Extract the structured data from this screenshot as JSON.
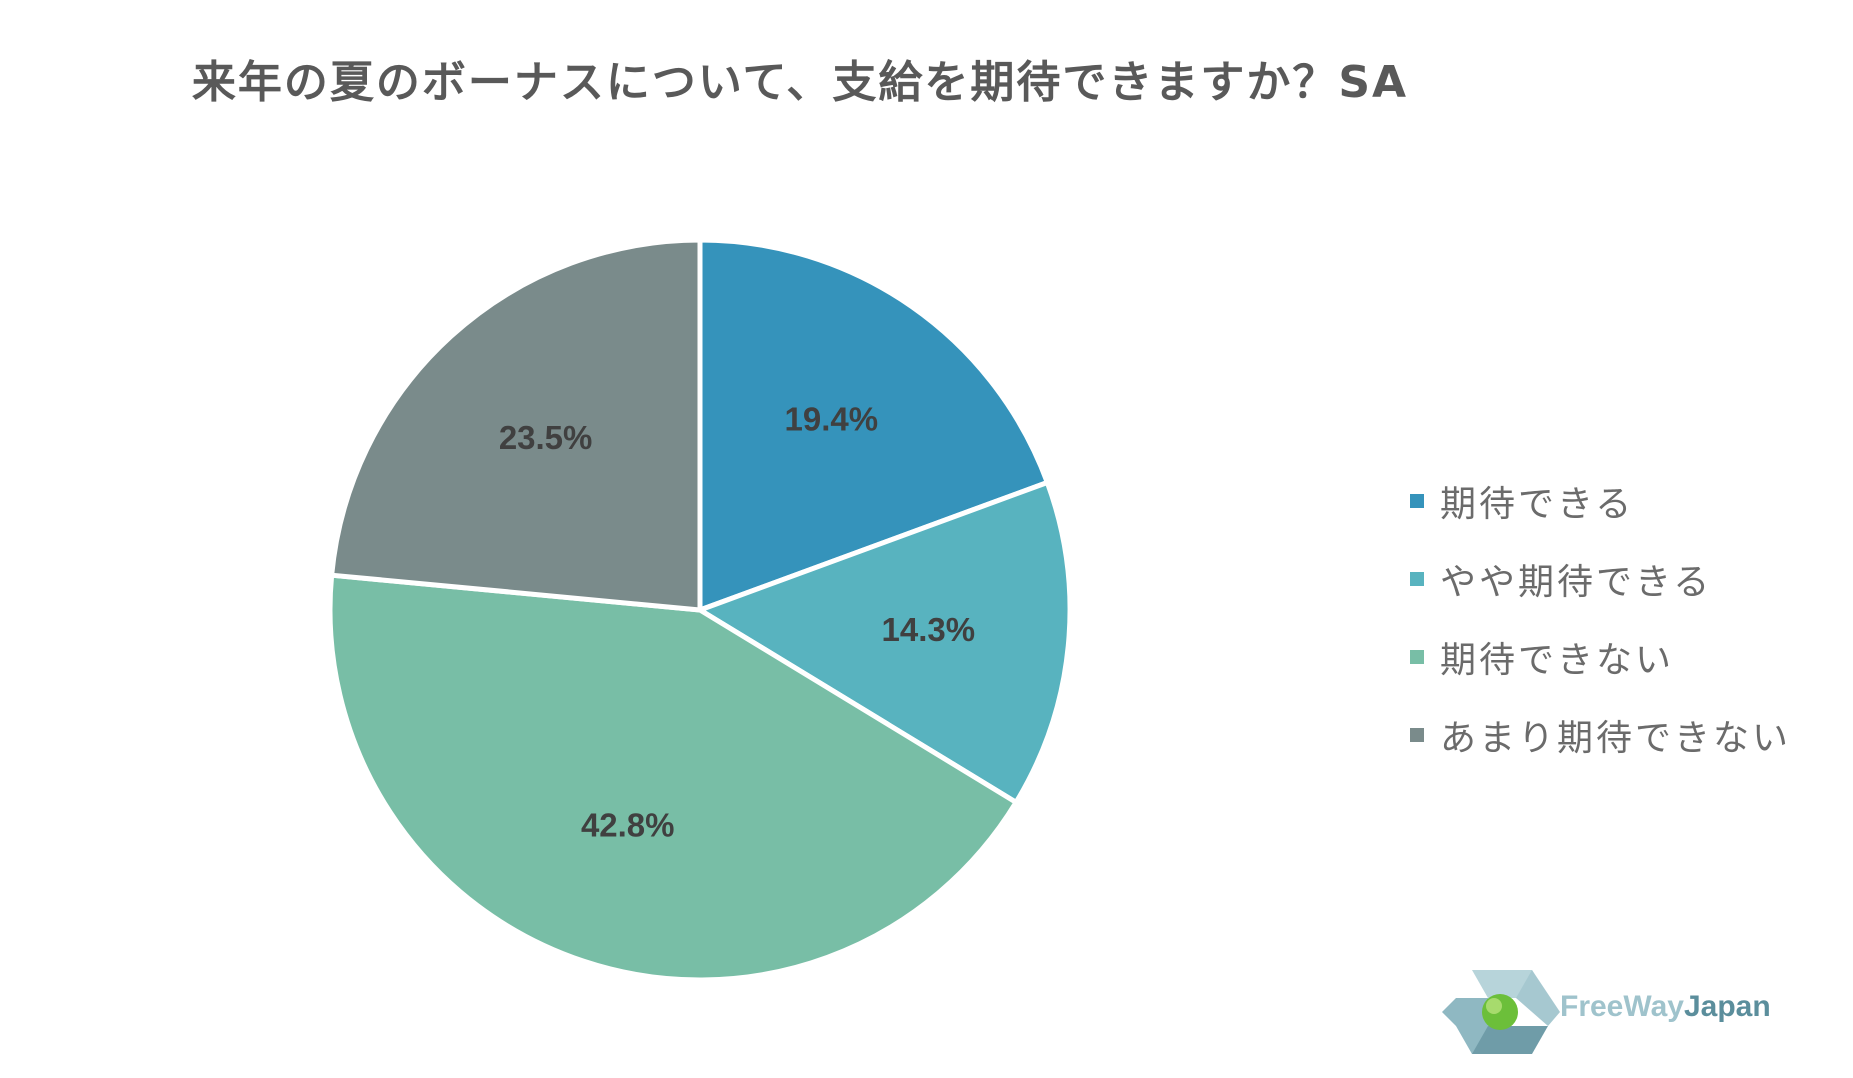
{
  "chart_data": {
    "type": "pie",
    "title": "来年の夏のボーナスについて、支給を期待できますか？SA",
    "categories": [
      "期待できる",
      "やや期待できる",
      "期待できない",
      "あまり期待できない"
    ],
    "values": [
      19.4,
      14.3,
      42.8,
      23.5
    ],
    "data_labels": [
      "19.4%",
      "14.3%",
      "42.8%",
      "23.5%"
    ],
    "colors": [
      "#3593bb",
      "#58b3bf",
      "#78bea6",
      "#7a8b8b"
    ],
    "legend_position": "right",
    "start_angle_deg": 0,
    "direction": "clockwise"
  },
  "logo": {
    "text_part1": "FreeWay",
    "text_part2": "Japan"
  }
}
